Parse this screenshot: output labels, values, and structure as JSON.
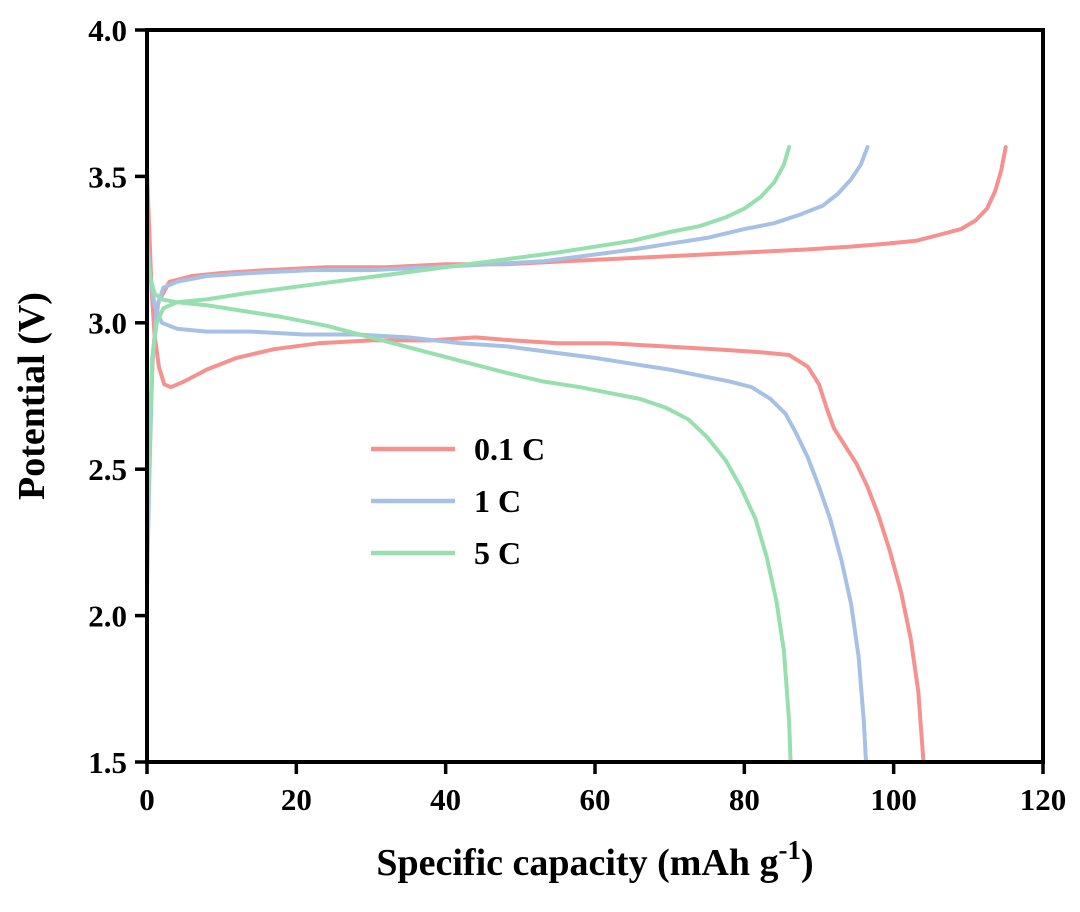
{
  "figure": {
    "kind": "scientific line chart",
    "description_visible_text_only": true
  },
  "chart_data": {
    "type": "line",
    "title": "",
    "xlabel_main": "Specific capacity (mAh g",
    "xlabel_sup": "-1",
    "xlabel_close": ")",
    "ylabel": "Potential (V)",
    "xlim": [
      0,
      120
    ],
    "ylim": [
      1.5,
      4.0
    ],
    "xticks": [
      0,
      20,
      40,
      60,
      80,
      100,
      120
    ],
    "xtick_labels": [
      "0",
      "20",
      "40",
      "60",
      "80",
      "100",
      "120"
    ],
    "yticks": [
      1.5,
      2.0,
      2.5,
      3.0,
      3.5,
      4.0
    ],
    "ytick_labels": [
      "1.5",
      "2.0",
      "2.5",
      "3.0",
      "3.5",
      "4.0"
    ],
    "grid": "off",
    "frame": "full box",
    "legend_position": "inside, center-left",
    "series": [
      {
        "name": "0.1 C",
        "color": "#F5918E",
        "charge_end_capacity": 115,
        "discharge_end_capacity": 104,
        "charge": [
          [
            0,
            2.45
          ],
          [
            0.4,
            2.65
          ],
          [
            0.8,
            2.9
          ],
          [
            1.5,
            3.07
          ],
          [
            3,
            3.14
          ],
          [
            6,
            3.16
          ],
          [
            10,
            3.17
          ],
          [
            16,
            3.18
          ],
          [
            24,
            3.19
          ],
          [
            32,
            3.19
          ],
          [
            40,
            3.2
          ],
          [
            48,
            3.2
          ],
          [
            56,
            3.21
          ],
          [
            64,
            3.22
          ],
          [
            72,
            3.23
          ],
          [
            80,
            3.24
          ],
          [
            88,
            3.25
          ],
          [
            94,
            3.26
          ],
          [
            99,
            3.27
          ],
          [
            103,
            3.28
          ],
          [
            106,
            3.3
          ],
          [
            109,
            3.32
          ],
          [
            111,
            3.35
          ],
          [
            112.5,
            3.39
          ],
          [
            113.6,
            3.45
          ],
          [
            114.4,
            3.52
          ],
          [
            115,
            3.6
          ]
        ],
        "discharge": [
          [
            0,
            3.52
          ],
          [
            0.3,
            3.32
          ],
          [
            0.6,
            3.12
          ],
          [
            1,
            2.96
          ],
          [
            1.6,
            2.85
          ],
          [
            2.3,
            2.79
          ],
          [
            3.2,
            2.78
          ],
          [
            5,
            2.8
          ],
          [
            8,
            2.84
          ],
          [
            12,
            2.88
          ],
          [
            17,
            2.91
          ],
          [
            23,
            2.93
          ],
          [
            30,
            2.94
          ],
          [
            38,
            2.94
          ],
          [
            44,
            2.95
          ],
          [
            49,
            2.94
          ],
          [
            55,
            2.93
          ],
          [
            62,
            2.93
          ],
          [
            69,
            2.92
          ],
          [
            76,
            2.91
          ],
          [
            82,
            2.9
          ],
          [
            86,
            2.89
          ],
          [
            88.5,
            2.85
          ],
          [
            90,
            2.79
          ],
          [
            91,
            2.71
          ],
          [
            92,
            2.64
          ],
          [
            93.5,
            2.58
          ],
          [
            95,
            2.52
          ],
          [
            96.5,
            2.44
          ],
          [
            98,
            2.34
          ],
          [
            99.5,
            2.22
          ],
          [
            101,
            2.08
          ],
          [
            102.3,
            1.92
          ],
          [
            103.3,
            1.74
          ],
          [
            104,
            1.5
          ]
        ]
      },
      {
        "name": "1 C",
        "color": "#A6C1E4",
        "charge_end_capacity": 96.5,
        "discharge_end_capacity": 96.3,
        "charge": [
          [
            0,
            2.1
          ],
          [
            0.3,
            2.45
          ],
          [
            0.7,
            2.85
          ],
          [
            1.3,
            3.05
          ],
          [
            2.2,
            3.12
          ],
          [
            4,
            3.14
          ],
          [
            8,
            3.16
          ],
          [
            14,
            3.17
          ],
          [
            22,
            3.18
          ],
          [
            30,
            3.18
          ],
          [
            38,
            3.19
          ],
          [
            46,
            3.2
          ],
          [
            53,
            3.21
          ],
          [
            59,
            3.23
          ],
          [
            65,
            3.25
          ],
          [
            70,
            3.27
          ],
          [
            75,
            3.29
          ],
          [
            80,
            3.32
          ],
          [
            84,
            3.34
          ],
          [
            87.5,
            3.37
          ],
          [
            90.5,
            3.4
          ],
          [
            92.5,
            3.44
          ],
          [
            94.3,
            3.49
          ],
          [
            95.6,
            3.54
          ],
          [
            96.5,
            3.6
          ]
        ],
        "discharge": [
          [
            0,
            3.3
          ],
          [
            0.4,
            3.16
          ],
          [
            1,
            3.06
          ],
          [
            2,
            3.0
          ],
          [
            4,
            2.98
          ],
          [
            8,
            2.97
          ],
          [
            14,
            2.97
          ],
          [
            21,
            2.96
          ],
          [
            28,
            2.96
          ],
          [
            35,
            2.95
          ],
          [
            42,
            2.93
          ],
          [
            48,
            2.92
          ],
          [
            54,
            2.9
          ],
          [
            60,
            2.88
          ],
          [
            65,
            2.86
          ],
          [
            70,
            2.84
          ],
          [
            74,
            2.82
          ],
          [
            78,
            2.8
          ],
          [
            81,
            2.78
          ],
          [
            83.5,
            2.74
          ],
          [
            85.5,
            2.69
          ],
          [
            87,
            2.62
          ],
          [
            88.5,
            2.54
          ],
          [
            90,
            2.44
          ],
          [
            91.5,
            2.33
          ],
          [
            93,
            2.19
          ],
          [
            94.3,
            2.04
          ],
          [
            95.3,
            1.86
          ],
          [
            96,
            1.64
          ],
          [
            96.3,
            1.5
          ]
        ]
      },
      {
        "name": "5 C",
        "color": "#97DFAE",
        "charge_end_capacity": 86,
        "discharge_end_capacity": 86.2,
        "charge": [
          [
            0,
            2.2
          ],
          [
            0.3,
            2.55
          ],
          [
            0.7,
            2.88
          ],
          [
            1.3,
            3.0
          ],
          [
            2.2,
            3.05
          ],
          [
            4,
            3.07
          ],
          [
            8,
            3.08
          ],
          [
            13,
            3.1
          ],
          [
            19,
            3.12
          ],
          [
            25,
            3.14
          ],
          [
            31,
            3.16
          ],
          [
            37,
            3.18
          ],
          [
            43,
            3.2
          ],
          [
            49,
            3.22
          ],
          [
            55,
            3.24
          ],
          [
            60,
            3.26
          ],
          [
            65,
            3.28
          ],
          [
            70,
            3.31
          ],
          [
            74,
            3.33
          ],
          [
            77.5,
            3.36
          ],
          [
            80,
            3.39
          ],
          [
            82.2,
            3.43
          ],
          [
            84,
            3.48
          ],
          [
            85.3,
            3.54
          ],
          [
            86,
            3.6
          ]
        ],
        "discharge": [
          [
            0,
            3.25
          ],
          [
            0.4,
            3.16
          ],
          [
            1,
            3.1
          ],
          [
            2,
            3.08
          ],
          [
            4,
            3.07
          ],
          [
            8,
            3.06
          ],
          [
            13,
            3.04
          ],
          [
            18,
            3.02
          ],
          [
            24,
            2.99
          ],
          [
            30,
            2.95
          ],
          [
            36,
            2.91
          ],
          [
            42,
            2.87
          ],
          [
            48,
            2.83
          ],
          [
            53,
            2.8
          ],
          [
            58,
            2.78
          ],
          [
            62,
            2.76
          ],
          [
            66,
            2.74
          ],
          [
            69.5,
            2.71
          ],
          [
            72.5,
            2.67
          ],
          [
            75,
            2.61
          ],
          [
            77.5,
            2.53
          ],
          [
            79.5,
            2.44
          ],
          [
            81.5,
            2.33
          ],
          [
            83,
            2.2
          ],
          [
            84.3,
            2.05
          ],
          [
            85.3,
            1.88
          ],
          [
            86,
            1.64
          ],
          [
            86.2,
            1.5
          ]
        ]
      }
    ]
  }
}
